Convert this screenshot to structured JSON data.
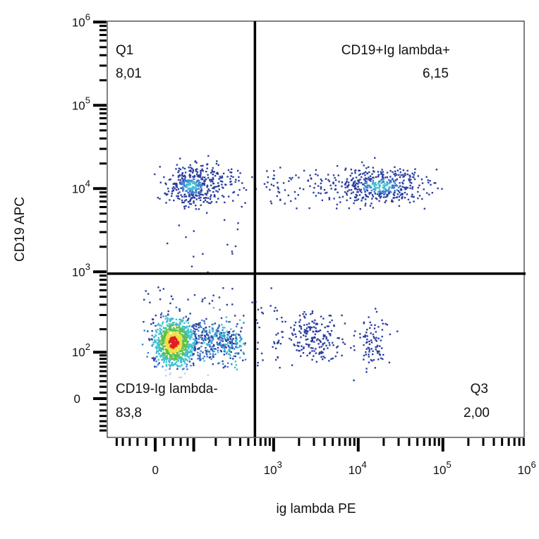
{
  "chart_data": {
    "type": "scatter",
    "subtype": "flow-cytometry pseudocolor dot plot",
    "xlabel": "ig lambda PE",
    "ylabel": "CD19 APC",
    "x_scale": "biexponential",
    "y_scale": "biexponential",
    "x_ticks": [
      {
        "value": 0,
        "base": "0",
        "exp": ""
      },
      {
        "value": 1000,
        "base": "10",
        "exp": "3"
      },
      {
        "value": 10000,
        "base": "10",
        "exp": "4"
      },
      {
        "value": 100000,
        "base": "10",
        "exp": "5"
      },
      {
        "value": 1000000,
        "base": "10",
        "exp": "6"
      }
    ],
    "y_ticks": [
      {
        "value": 0,
        "base": "0",
        "exp": ""
      },
      {
        "value": 100,
        "base": "10",
        "exp": "2"
      },
      {
        "value": 1000,
        "base": "10",
        "exp": "3"
      },
      {
        "value": 10000,
        "base": "10",
        "exp": "4"
      },
      {
        "value": 100000,
        "base": "10",
        "exp": "5"
      },
      {
        "value": 1000000,
        "base": "10",
        "exp": "6"
      }
    ],
    "gates": {
      "x_threshold": 600,
      "y_threshold": 950
    },
    "quadrants": [
      {
        "name": "Q1",
        "percent": "8,01",
        "position": "top-left"
      },
      {
        "name": "CD19+Ig lambda+",
        "percent": "6,15",
        "position": "top-right"
      },
      {
        "name": "CD19-Ig lambda-",
        "percent": "83,8",
        "position": "bottom-left"
      },
      {
        "name": "Q3",
        "percent": "2,00",
        "position": "bottom-right"
      }
    ],
    "populations": [
      {
        "quadrant": "CD19-Ig lambda-",
        "x_center": 40,
        "y_center": 140,
        "density": "high"
      },
      {
        "quadrant": "Q1",
        "x_center": 90,
        "y_center": 11000,
        "density": "medium"
      },
      {
        "quadrant": "CD19+Ig lambda+",
        "x_center": 18000,
        "y_center": 11000,
        "density": "medium"
      },
      {
        "quadrant": "Q3",
        "x_center": 3000,
        "y_center": 170,
        "density": "low"
      },
      {
        "quadrant": "Q3",
        "x_center": 14000,
        "y_center": 140,
        "density": "low"
      }
    ],
    "colormap": [
      "#2b3f9e",
      "#3f7fd0",
      "#40c0d0",
      "#5cc050",
      "#f0e040",
      "#e02020"
    ],
    "grid": false,
    "legend": "none"
  }
}
